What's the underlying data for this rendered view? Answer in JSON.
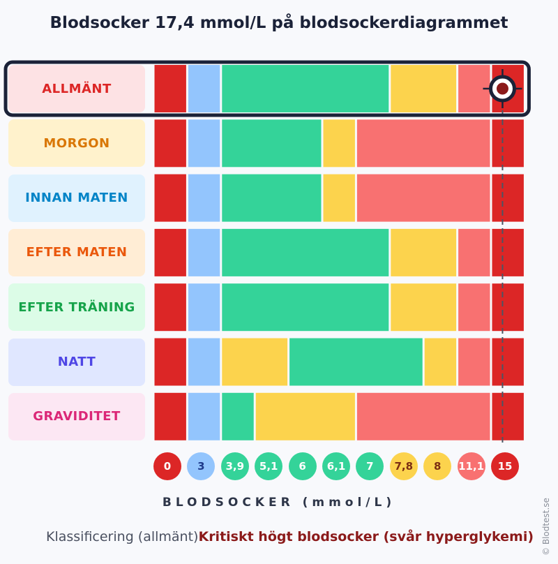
{
  "chart_data": {
    "type": "range-chart",
    "title": "Blodsocker 17,4 mmol/L på blodsockerdiagrammet",
    "xlabel": "BLODSOCKER (mmol/L)",
    "ticks": [
      {
        "label": "0",
        "color": "#dc2626"
      },
      {
        "label": "3",
        "color": "#93c5fd"
      },
      {
        "label": "3,9",
        "color": "#34d399"
      },
      {
        "label": "5,1",
        "color": "#34d399"
      },
      {
        "label": "6",
        "color": "#34d399"
      },
      {
        "label": "6,1",
        "color": "#34d399"
      },
      {
        "label": "7",
        "color": "#34d399"
      },
      {
        "label": "7,8",
        "color": "#fcd34d"
      },
      {
        "label": "8",
        "color": "#fcd34d"
      },
      {
        "label": "11,1",
        "color": "#f87171"
      },
      {
        "label": "15",
        "color": "#dc2626"
      }
    ],
    "rows": [
      {
        "label": "ALLMÄNT",
        "text_color": "#dc2626",
        "bg": "#fde2e4",
        "segments": [
          "critical",
          "low",
          "normal",
          "normal",
          "normal",
          "normal",
          "normal",
          "elevated",
          "elevated",
          "high",
          "critical"
        ]
      },
      {
        "label": "MORGON",
        "text_color": "#d97706",
        "bg": "#fff2cc",
        "segments": [
          "critical",
          "low",
          "normal",
          "normal",
          "normal",
          "elevated",
          "high",
          "high",
          "high",
          "high",
          "critical"
        ]
      },
      {
        "label": "INNAN MATEN",
        "text_color": "#0284c7",
        "bg": "#e0f2fe",
        "segments": [
          "critical",
          "low",
          "normal",
          "normal",
          "normal",
          "elevated",
          "high",
          "high",
          "high",
          "high",
          "critical"
        ]
      },
      {
        "label": "EFTER MATEN",
        "text_color": "#ea580c",
        "bg": "#ffedd5",
        "segments": [
          "critical",
          "low",
          "normal",
          "normal",
          "normal",
          "normal",
          "normal",
          "elevated",
          "elevated",
          "high",
          "critical"
        ]
      },
      {
        "label": "EFTER TRÄNING",
        "text_color": "#16a34a",
        "bg": "#dcfce7",
        "segments": [
          "critical",
          "low",
          "normal",
          "normal",
          "normal",
          "normal",
          "normal",
          "elevated",
          "elevated",
          "high",
          "critical"
        ]
      },
      {
        "label": "NATT",
        "text_color": "#4f46e5",
        "bg": "#e0e7ff",
        "segments": [
          "critical",
          "low",
          "elevated",
          "elevated",
          "normal",
          "normal",
          "normal",
          "normal",
          "elevated",
          "high",
          "critical"
        ]
      },
      {
        "label": "GRAVIDITET",
        "text_color": "#db2777",
        "bg": "#fce7f3",
        "segments": [
          "critical",
          "low",
          "normal",
          "elevated",
          "elevated",
          "elevated",
          "high",
          "high",
          "high",
          "high",
          "critical"
        ]
      }
    ],
    "category_colors": {
      "critical": "#dc2626",
      "low": "#93c5fd",
      "normal": "#34d399",
      "elevated": "#fcd34d",
      "high": "#f87171"
    },
    "value": 17.4,
    "highlighted_row": "ALLMÄNT",
    "marker_colors": {
      "ring": "#1b2238",
      "dot": "#8b1a1a",
      "fill": "#ffffff"
    }
  },
  "classification": {
    "label": "Klassificering (allmänt)",
    "value": "Kritiskt högt blodsocker (svår hyperglykemi)"
  },
  "copyright": "© Blodtest.se"
}
